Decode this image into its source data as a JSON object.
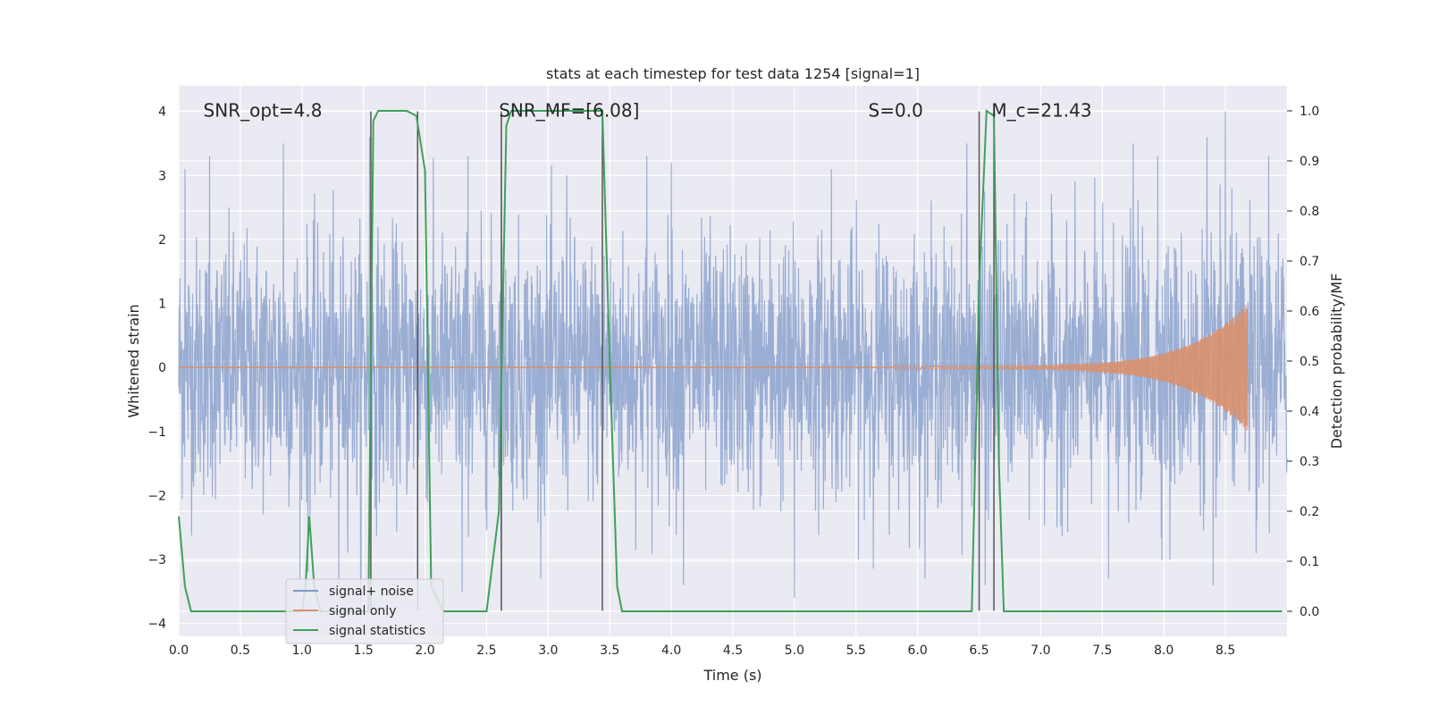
{
  "chart_data": {
    "type": "line",
    "title": "stats at each timestep for test data 1254 [signal=1]",
    "xlabel": "Time (s)",
    "ylabel": "Whitened strain",
    "ylabel_right": "Detection probability/MF",
    "xlim": [
      0.0,
      9.0
    ],
    "ylim": [
      -4.2,
      4.4
    ],
    "ylim_right": [
      -0.05,
      1.05
    ],
    "x_ticks": [
      0.0,
      0.5,
      1.0,
      1.5,
      2.0,
      2.5,
      3.0,
      3.5,
      4.0,
      4.5,
      5.0,
      5.5,
      6.0,
      6.5,
      7.0,
      7.5,
      8.0,
      8.5
    ],
    "x_tick_labels": [
      "0.0",
      "0.5",
      "1.0",
      "1.5",
      "2.0",
      "2.5",
      "3.0",
      "3.5",
      "4.0",
      "4.5",
      "5.0",
      "5.5",
      "6.0",
      "6.5",
      "7.0",
      "7.5",
      "8.0",
      "8.5"
    ],
    "y_ticks": [
      -4,
      -3,
      -2,
      -1,
      0,
      1,
      2,
      3,
      4
    ],
    "y_tick_labels": [
      "−4",
      "−3",
      "−2",
      "−1",
      "0",
      "1",
      "2",
      "3",
      "4"
    ],
    "y_ticks_right": [
      0.0,
      0.1,
      0.2,
      0.3,
      0.4,
      0.5,
      0.6,
      0.7,
      0.8,
      0.9,
      1.0
    ],
    "y_tick_labels_right": [
      "0.0",
      "0.1",
      "0.2",
      "0.3",
      "0.4",
      "0.5",
      "0.6",
      "0.7",
      "0.8",
      "0.9",
      "1.0"
    ],
    "grid": true,
    "legend_position": "lower-left",
    "annotations": [
      {
        "text": "SNR_opt=4.8",
        "x": 0.2,
        "y": 4.0
      },
      {
        "text": "SNR_MF=[6.08]",
        "x": 2.6,
        "y": 4.0
      },
      {
        "text": "S=0.0",
        "x": 5.6,
        "y": 4.0
      },
      {
        "text": "M_c=21.43",
        "x": 6.6,
        "y": 4.0
      }
    ],
    "vertical_lines_x": [
      1.56,
      1.94,
      2.62,
      3.44,
      6.5,
      6.62
    ],
    "series": [
      {
        "name": "signal+ noise",
        "color": "#7f98c8",
        "kind": "noise",
        "x_range": [
          0.0,
          9.0
        ],
        "std": 1.0,
        "peaks": [
          [
            0.05,
            3.1
          ],
          [
            0.25,
            3.3
          ],
          [
            0.85,
            3.5
          ],
          [
            1.55,
            3.6
          ],
          [
            2.35,
            3.3
          ],
          [
            2.62,
            3.4
          ],
          [
            3.15,
            3.0
          ],
          [
            3.8,
            3.3
          ],
          [
            4.0,
            3.2
          ],
          [
            5.3,
            3.1
          ],
          [
            6.4,
            3.5
          ],
          [
            7.75,
            3.5
          ],
          [
            7.95,
            3.3
          ],
          [
            8.35,
            3.6
          ],
          [
            8.5,
            4.0
          ],
          [
            8.85,
            3.3
          ]
        ],
        "troughs": [
          [
            1.05,
            -3.2
          ],
          [
            1.3,
            -3.4
          ],
          [
            1.48,
            -3.7
          ],
          [
            2.3,
            -3.5
          ],
          [
            4.1,
            -3.4
          ],
          [
            5.0,
            -3.6
          ],
          [
            6.55,
            -3.4
          ],
          [
            7.55,
            -3.3
          ],
          [
            8.05,
            -3.0
          ],
          [
            8.4,
            -3.4
          ],
          [
            8.75,
            -2.9
          ]
        ]
      },
      {
        "name": "signal only",
        "color": "#d8906e",
        "kind": "chirp",
        "start_x": 5.8,
        "end_x": 8.68,
        "peak_amplitude": 1.0
      },
      {
        "name": "signal statistics",
        "color": "#3fa05a",
        "axis": "right",
        "x": [
          0.0,
          0.05,
          0.1,
          0.15,
          1.0,
          1.03,
          1.06,
          1.1,
          1.15,
          1.54,
          1.58,
          1.62,
          1.7,
          1.85,
          1.93,
          2.0,
          2.05,
          2.15,
          2.3,
          2.5,
          2.6,
          2.66,
          2.7,
          3.0,
          3.3,
          3.44,
          3.5,
          3.56,
          3.6,
          6.0,
          6.44,
          6.5,
          6.56,
          6.62,
          6.66,
          6.7,
          6.75,
          6.8,
          7.5,
          8.96
        ],
        "values": [
          0.19,
          0.05,
          0.0,
          0.0,
          0.0,
          0.05,
          0.19,
          0.05,
          0.0,
          0.0,
          0.98,
          1.0,
          1.0,
          1.0,
          0.99,
          0.88,
          0.05,
          0.0,
          0.0,
          0.0,
          0.2,
          0.97,
          1.0,
          1.0,
          1.0,
          1.0,
          0.5,
          0.05,
          0.0,
          0.0,
          0.0,
          0.65,
          1.0,
          0.99,
          0.3,
          0.0,
          0.0,
          0.0,
          0.0,
          0.0
        ]
      }
    ]
  }
}
